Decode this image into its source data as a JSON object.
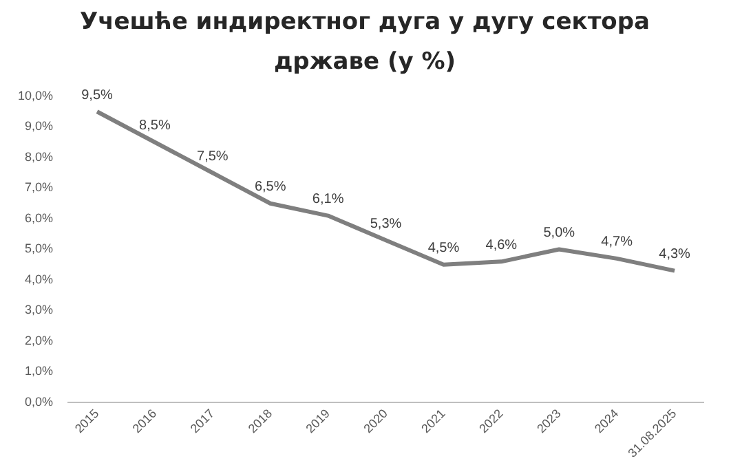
{
  "chart_data": {
    "type": "line",
    "title": "Учешће индиректног дуга у дугу сектора државе (у %)",
    "categories": [
      "2015",
      "2016",
      "2017",
      "2018",
      "2019",
      "2020",
      "2021",
      "2022",
      "2023",
      "2024",
      "31.08.2025"
    ],
    "values": [
      9.5,
      8.5,
      7.5,
      6.5,
      6.1,
      5.3,
      4.5,
      4.6,
      5.0,
      4.7,
      4.3
    ],
    "value_labels": [
      "9,5%",
      "8,5%",
      "7,5%",
      "6,5%",
      "6,1%",
      "5,3%",
      "4,5%",
      "4,6%",
      "5,0%",
      "4,7%",
      "4,3%"
    ],
    "color": "#7f7f7f",
    "ylim": [
      0,
      10
    ],
    "yticks": [
      {
        "value": 0,
        "label": "0,0%"
      },
      {
        "value": 1,
        "label": "1,0%"
      },
      {
        "value": 2,
        "label": "2,0%"
      },
      {
        "value": 3,
        "label": "3,0%"
      },
      {
        "value": 4,
        "label": "4,0%"
      },
      {
        "value": 5,
        "label": "5,0%"
      },
      {
        "value": 6,
        "label": "6,0%"
      },
      {
        "value": 7,
        "label": "7,0%"
      },
      {
        "value": 8,
        "label": "8,0%"
      },
      {
        "value": 9,
        "label": "9,0%"
      },
      {
        "value": 10,
        "label": "10,0%"
      }
    ],
    "grid": false,
    "legend": false,
    "marker": "none",
    "line_style": "solid"
  }
}
